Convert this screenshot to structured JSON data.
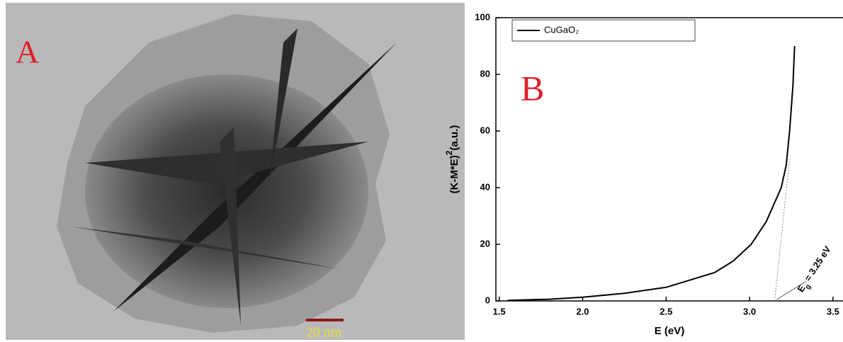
{
  "panel_a": {
    "label": "A",
    "scale_bar_label": "20 nm"
  },
  "chart_data": {
    "type": "line",
    "panel_label": "B",
    "x_label": "E (eV)",
    "y_label": [
      "(K-M*E)",
      "2",
      "(a.u.)"
    ],
    "x": [
      1.55,
      1.8,
      2.0,
      2.25,
      2.5,
      2.79,
      2.9,
      3.01,
      3.1,
      3.16,
      3.19,
      3.22,
      3.24,
      3.26,
      3.27
    ],
    "series": [
      {
        "name": "CuGaO₂",
        "color": "#000000",
        "values": [
          0.2,
          0.6,
          1.3,
          2.7,
          4.8,
          10,
          14,
          20,
          28,
          36,
          40,
          48,
          60,
          76,
          90
        ]
      }
    ],
    "tangent": {
      "x": [
        3.15,
        3.24
      ],
      "y": [
        0,
        50
      ],
      "color": "#888888"
    },
    "annotation": [
      "E",
      "g",
      " = 3.25 eV"
    ],
    "xlim": [
      1.48,
      3.56
    ],
    "xticks": [
      1.5,
      {
        "value": 2,
        "label": "2.0"
      },
      2.5,
      {
        "value": 3,
        "label": "3.0"
      },
      3.5
    ],
    "ylim": [
      0,
      100
    ],
    "yticks": [
      0,
      20,
      40,
      60,
      80,
      100
    ],
    "legend": "top-left"
  }
}
